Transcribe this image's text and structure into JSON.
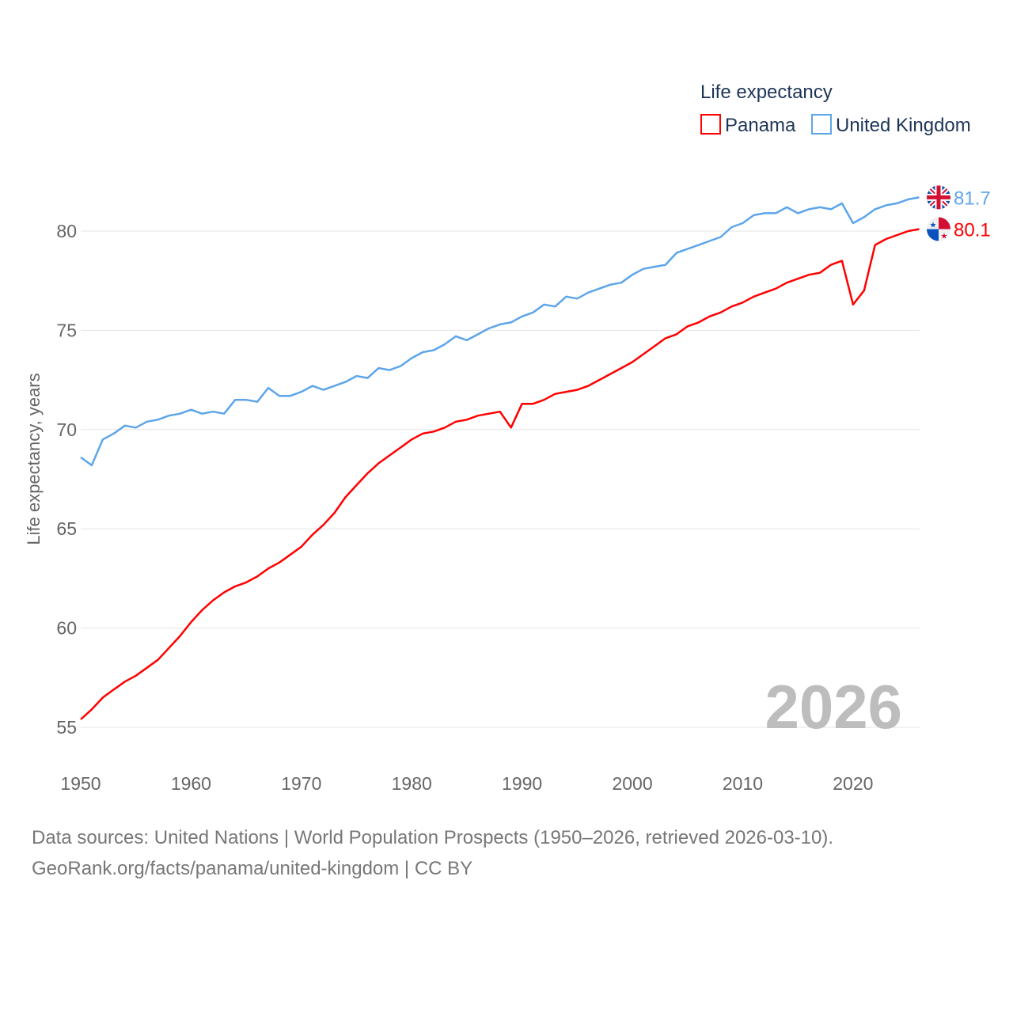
{
  "chart_data": {
    "type": "line",
    "title": "",
    "legend_title": "Life expectancy",
    "ylabel": "Life expectancy, years",
    "xlabel": "",
    "xlim": [
      1950,
      2026
    ],
    "ylim": [
      53,
      83
    ],
    "x_ticks": [
      1950,
      1960,
      1970,
      1980,
      1990,
      2000,
      2010,
      2020
    ],
    "y_ticks": [
      55,
      60,
      65,
      70,
      75,
      80
    ],
    "grid": true,
    "legend_position": "top-right",
    "current_year_label": "2026",
    "x": [
      1950,
      1951,
      1952,
      1953,
      1954,
      1955,
      1956,
      1957,
      1958,
      1959,
      1960,
      1961,
      1962,
      1963,
      1964,
      1965,
      1966,
      1967,
      1968,
      1969,
      1970,
      1971,
      1972,
      1973,
      1974,
      1975,
      1976,
      1977,
      1978,
      1979,
      1980,
      1981,
      1982,
      1983,
      1984,
      1985,
      1986,
      1987,
      1988,
      1989,
      1990,
      1991,
      1992,
      1993,
      1994,
      1995,
      1996,
      1997,
      1998,
      1999,
      2000,
      2001,
      2002,
      2003,
      2004,
      2005,
      2006,
      2007,
      2008,
      2009,
      2010,
      2011,
      2012,
      2013,
      2014,
      2015,
      2016,
      2017,
      2018,
      2019,
      2020,
      2021,
      2022,
      2023,
      2024,
      2025,
      2026
    ],
    "series": [
      {
        "name": "Panama",
        "color": "#ff0000",
        "end_label": "80.1",
        "values": [
          55.4,
          55.9,
          56.5,
          56.9,
          57.3,
          57.6,
          58.0,
          58.4,
          59.0,
          59.6,
          60.3,
          60.9,
          61.4,
          61.8,
          62.1,
          62.3,
          62.6,
          63.0,
          63.3,
          63.7,
          64.1,
          64.7,
          65.2,
          65.8,
          66.6,
          67.2,
          67.8,
          68.3,
          68.7,
          69.1,
          69.5,
          69.8,
          69.9,
          70.1,
          70.4,
          70.5,
          70.7,
          70.8,
          70.9,
          70.1,
          71.3,
          71.3,
          71.5,
          71.8,
          71.9,
          72.0,
          72.2,
          72.5,
          72.8,
          73.1,
          73.4,
          73.8,
          74.2,
          74.6,
          74.8,
          75.2,
          75.4,
          75.7,
          75.9,
          76.2,
          76.4,
          76.7,
          76.9,
          77.1,
          77.4,
          77.6,
          77.8,
          77.9,
          78.3,
          78.5,
          76.3,
          77.0,
          79.3,
          79.6,
          79.8,
          80.0,
          80.1
        ]
      },
      {
        "name": "United Kingdom",
        "color": "#5da5ea",
        "end_label": "81.7",
        "values": [
          68.6,
          68.2,
          69.5,
          69.8,
          70.2,
          70.1,
          70.4,
          70.5,
          70.7,
          70.8,
          71.0,
          70.8,
          70.9,
          70.8,
          71.5,
          71.5,
          71.4,
          72.1,
          71.7,
          71.7,
          71.9,
          72.2,
          72.0,
          72.2,
          72.4,
          72.7,
          72.6,
          73.1,
          73.0,
          73.2,
          73.6,
          73.9,
          74.0,
          74.3,
          74.7,
          74.5,
          74.8,
          75.1,
          75.3,
          75.4,
          75.7,
          75.9,
          76.3,
          76.2,
          76.7,
          76.6,
          76.9,
          77.1,
          77.3,
          77.4,
          77.8,
          78.1,
          78.2,
          78.3,
          78.9,
          79.1,
          79.3,
          79.5,
          79.7,
          80.2,
          80.4,
          80.8,
          80.9,
          80.9,
          81.2,
          80.9,
          81.1,
          81.2,
          81.1,
          81.4,
          80.4,
          80.7,
          81.1,
          81.3,
          81.4,
          81.6,
          81.7
        ]
      }
    ]
  },
  "footer": {
    "source": "Data sources: United Nations | World Population Prospects (1950–2026, retrieved 2026-03-10).",
    "credit": "GeoRank.org/facts/panama/united-kingdom | CC BY"
  }
}
